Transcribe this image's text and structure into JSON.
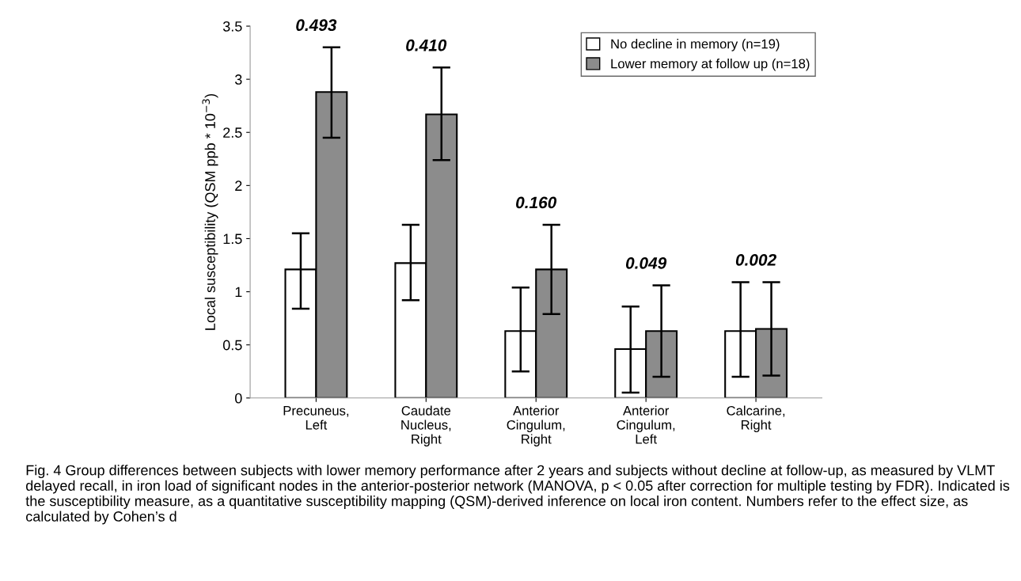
{
  "chart_data": {
    "type": "bar",
    "ylabel": "Local susceptibility (QSM ppb * 10$^{−3}$)",
    "categories": [
      "Precuneus,\nLeft",
      "Caudate\nNucleus,\nRight",
      "Anterior\nCingulum,\nRight",
      "Anterior\nCingulum,\nLeft",
      "Calcarine,\nRight"
    ],
    "series": [
      {
        "name": "No decline in memory (n=19)",
        "color": "#ffffff",
        "values": [
          1.21,
          1.27,
          0.63,
          0.46,
          0.63
        ],
        "errors": [
          [
            0.84,
            1.55
          ],
          [
            0.92,
            1.63
          ],
          [
            0.25,
            1.04
          ],
          [
            0.05,
            0.86
          ],
          [
            0.2,
            1.09
          ]
        ]
      },
      {
        "name": "Lower memory at follow up (n=18)",
        "color": "#8c8c8c",
        "values": [
          2.88,
          2.67,
          1.21,
          0.63,
          0.65
        ],
        "errors": [
          [
            2.45,
            3.3
          ],
          [
            2.24,
            3.11
          ],
          [
            0.79,
            1.63
          ],
          [
            0.2,
            1.06
          ],
          [
            0.21,
            1.09
          ]
        ]
      }
    ],
    "ylim": [
      0,
      3.5
    ],
    "yticks": [
      0,
      0.5,
      1,
      1.5,
      2,
      2.5,
      3,
      3.5
    ],
    "grid": false,
    "legend": "top right",
    "annotations": [
      "0.493",
      "0.410",
      "0.160",
      "0.049",
      "0.002",
      "Fig. 4 Group differences between subjects with lower memory performance after 2 years and subjects without decline at follow-up, as measured by VLMT delayed recall, in iron load of significant nodes in the anterior-posterior network (MANOVA, p < 0.05 after correction for multiple testing by FDR). Indicated is the susceptibility measure, as a quantitative susceptibility mapping (QSM)-derived inference on local iron content. Numbers refer to the effect size, as calculated by Cohen’s d"
    ]
  }
}
